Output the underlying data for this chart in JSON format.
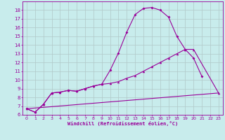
{
  "xlabel": "Windchill (Refroidissement éolien,°C)",
  "bg_color": "#c8ecec",
  "line_color": "#990099",
  "grid_color": "#b0c8c8",
  "xlim": [
    -0.5,
    23.5
  ],
  "ylim": [
    6,
    19
  ],
  "xticks": [
    0,
    1,
    2,
    3,
    4,
    5,
    6,
    7,
    8,
    9,
    10,
    11,
    12,
    13,
    14,
    15,
    16,
    17,
    18,
    19,
    20,
    21,
    22,
    23
  ],
  "yticks": [
    6,
    7,
    8,
    9,
    10,
    11,
    12,
    13,
    14,
    15,
    16,
    17,
    18
  ],
  "curve1_x": [
    0,
    1,
    2,
    3,
    4,
    5,
    6,
    7,
    8,
    9,
    10,
    11,
    12,
    13,
    14,
    15,
    16,
    17,
    18,
    19,
    20,
    21
  ],
  "curve1_y": [
    6.7,
    6.3,
    7.2,
    8.5,
    8.6,
    8.8,
    8.7,
    9.0,
    9.3,
    9.5,
    11.1,
    13.1,
    15.5,
    17.5,
    18.2,
    18.3,
    18.0,
    17.2,
    15.0,
    13.5,
    12.5,
    10.4
  ],
  "curve2_x": [
    0,
    1,
    2,
    3,
    4,
    5,
    6,
    7,
    8,
    9,
    10,
    11,
    12,
    13,
    14,
    15,
    16,
    17,
    18,
    19,
    20,
    23
  ],
  "curve2_y": [
    6.7,
    6.3,
    7.2,
    8.5,
    8.6,
    8.8,
    8.7,
    9.0,
    9.3,
    9.5,
    9.6,
    9.8,
    10.2,
    10.5,
    11.0,
    11.5,
    12.0,
    12.5,
    13.0,
    13.5,
    13.5,
    8.5
  ],
  "curve3_x": [
    0,
    23
  ],
  "curve3_y": [
    6.7,
    8.5
  ]
}
